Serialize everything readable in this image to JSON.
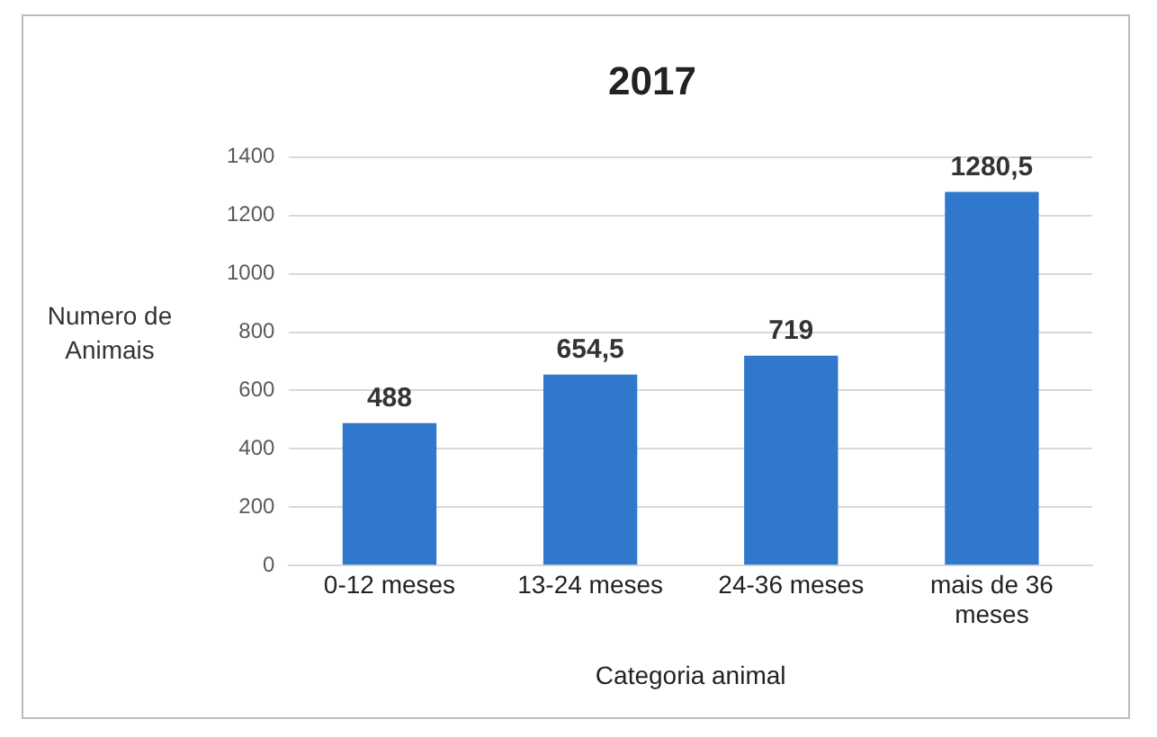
{
  "chart_data": {
    "type": "bar",
    "title": "2017",
    "xlabel": "Categoria animal",
    "ylabel": "Numero de Animais",
    "categories": [
      "0-12 meses",
      "13-24 meses",
      "24-36 meses",
      "mais de 36 meses"
    ],
    "values": [
      488,
      654.5,
      719,
      1280.5
    ],
    "value_labels": [
      "488",
      "654,5",
      "719",
      "1280,5"
    ],
    "color": "#2f78cd",
    "ylim": [
      0,
      1400
    ],
    "yticks": [
      0,
      200,
      400,
      600,
      800,
      1000,
      1200,
      1400
    ],
    "grid": "y",
    "legend": false
  }
}
